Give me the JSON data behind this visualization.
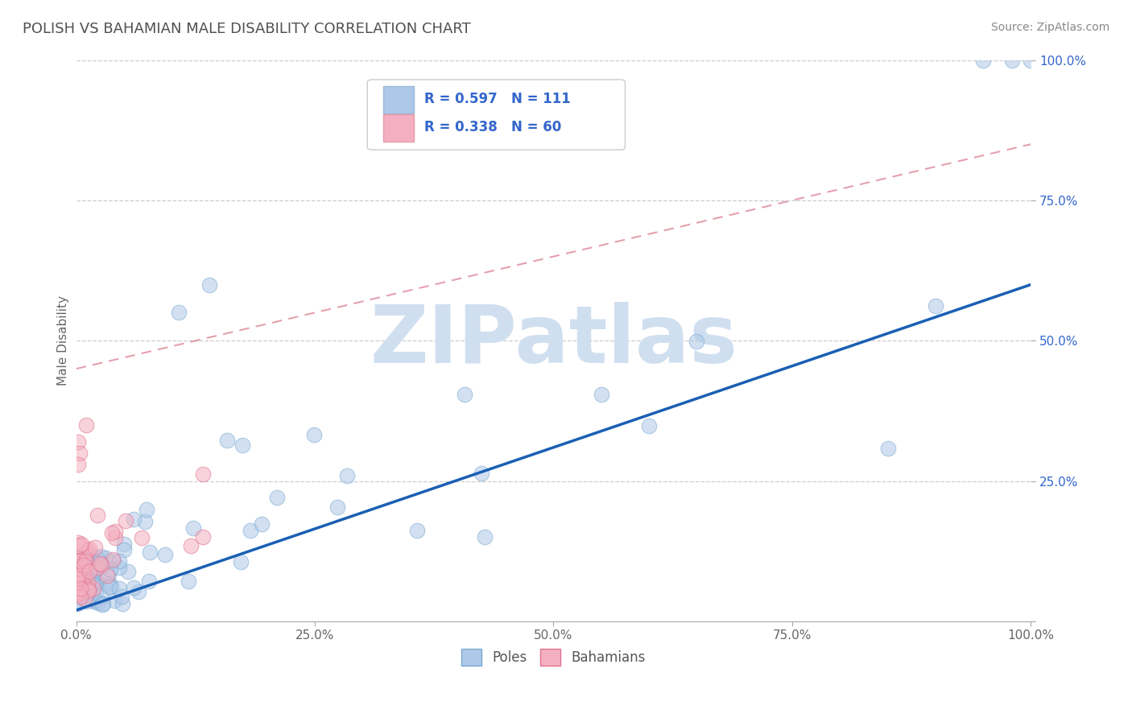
{
  "title": "POLISH VS BAHAMIAN MALE DISABILITY CORRELATION CHART",
  "source_text": "Source: ZipAtlas.com",
  "ylabel": "Male Disability",
  "xlim": [
    0,
    1.0
  ],
  "ylim": [
    0,
    1.0
  ],
  "xticks": [
    0.0,
    0.25,
    0.5,
    0.75,
    1.0
  ],
  "yticks": [
    0.0,
    0.25,
    0.5,
    0.75,
    1.0
  ],
  "xticklabels": [
    "0.0%",
    "25.0%",
    "50.0%",
    "75.0%",
    "100.0%"
  ],
  "yticklabels": [
    "",
    "25.0%",
    "50.0%",
    "75.0%",
    "100.0%"
  ],
  "poles_color": "#adc8e8",
  "bahamians_color": "#f4b0c0",
  "poles_edge_color": "#7aaad0",
  "bahamians_edge_color": "#e07090",
  "blue_line_color": "#1a5fb4",
  "dashed_line_color": "#e090a0",
  "R_poles": 0.597,
  "N_poles": 111,
  "R_bahamians": 0.338,
  "N_bahamians": 60,
  "background_color": "#ffffff",
  "grid_color": "#c8c8c8",
  "title_color": "#505050",
  "blue_line_y0": 0.02,
  "blue_line_y1": 0.6,
  "dashed_line_y0": 0.45,
  "dashed_line_y1": 0.85,
  "watermark_text": "ZIPatlas",
  "watermark_color": "#d0dff0",
  "legend_box_color_poles": "#adc8e8",
  "legend_box_color_bahamians": "#f4b0c0",
  "legend_text_color": "#3366cc",
  "source_color": "#888888"
}
